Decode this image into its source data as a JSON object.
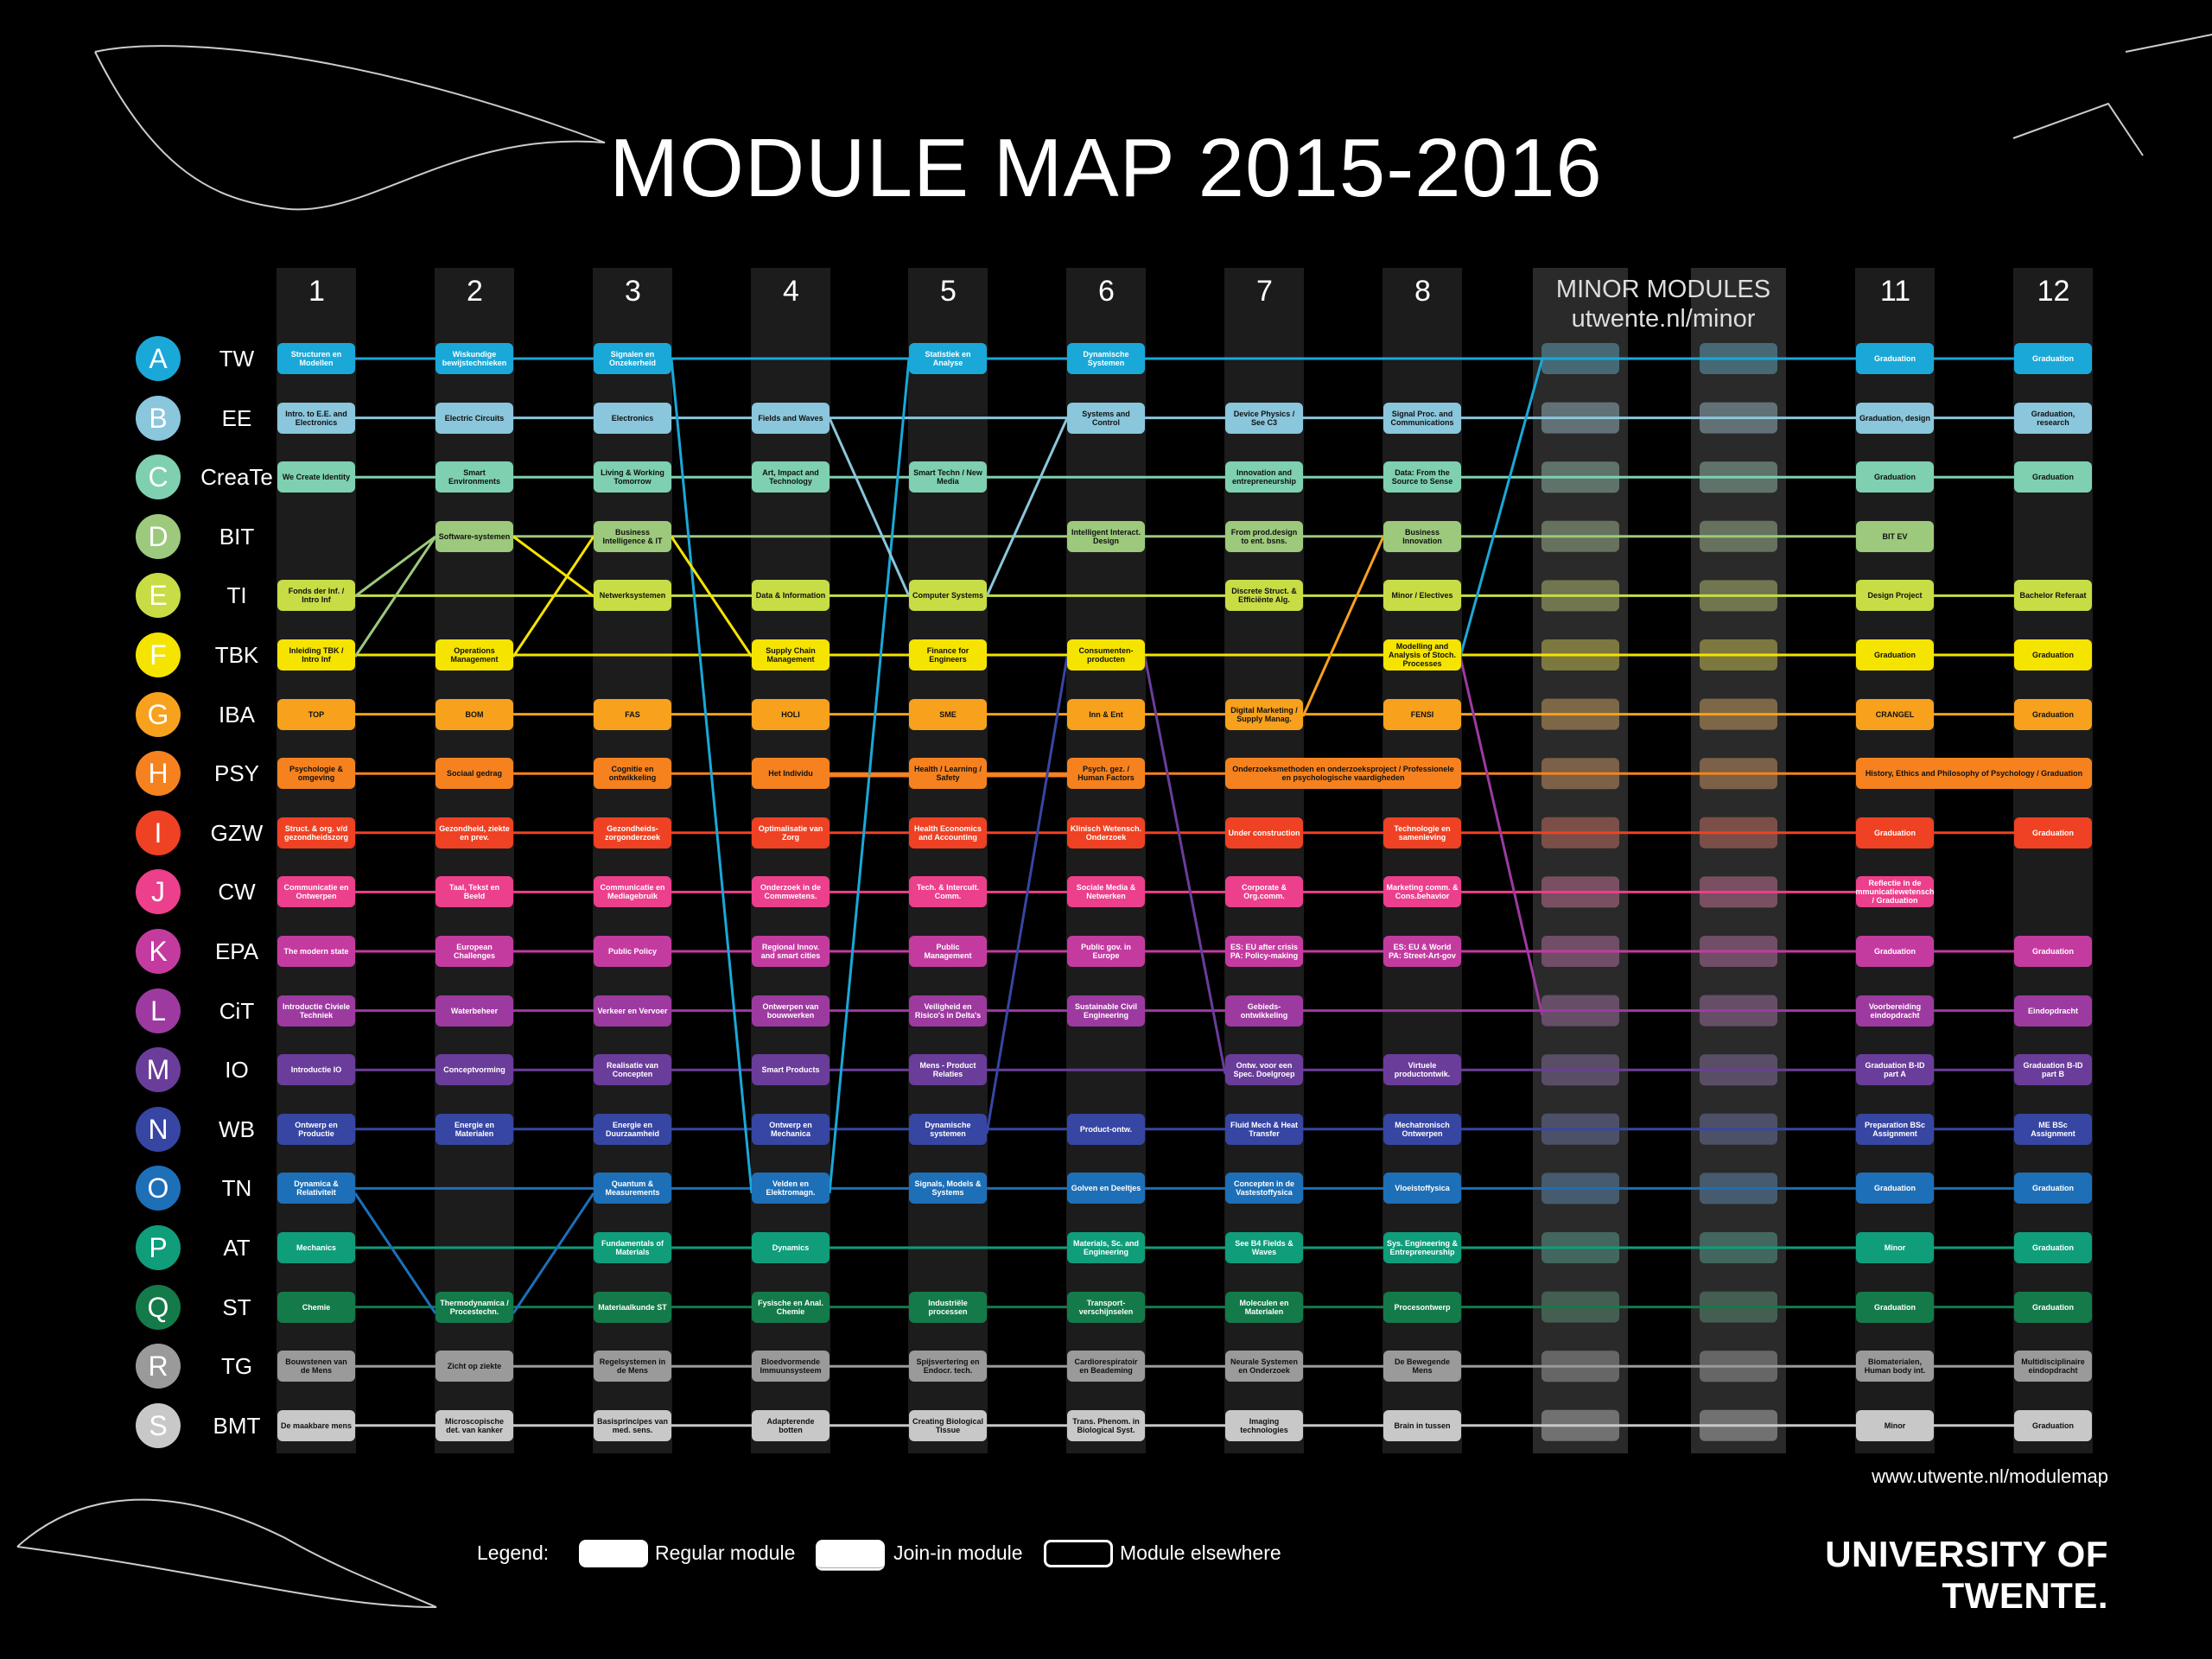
{
  "header": {
    "title": "MODULE MAP 2015-2016"
  },
  "columns": [
    "1",
    "2",
    "3",
    "4",
    "5",
    "6",
    "7",
    "8",
    "11",
    "12"
  ],
  "minor": {
    "title": "MINOR MODULES",
    "url": "utwente.nl/minor"
  },
  "rows": [
    {
      "letter": "A",
      "code": "TW",
      "color": "#1aa8d8",
      "modules": [
        "Structuren en Modellen",
        "Wiskundige bewijstechnieken",
        "Signalen en Onzekerheid",
        null,
        "Statistiek en Analyse",
        "Dynamische Systemen",
        null,
        null,
        "Graduation",
        "Graduation"
      ]
    },
    {
      "letter": "B",
      "code": "EE",
      "color": "#8ac6dc",
      "modules": [
        "Intro. to E.E. and Electronics",
        "Electric Circuits",
        "Electronics",
        "Fields and Waves",
        null,
        "Systems and Control",
        "Device Physics / See C3",
        "Signal Proc. and Communications",
        "Graduation, design",
        "Graduation, research"
      ]
    },
    {
      "letter": "C",
      "code": "CreaTe",
      "color": "#7ed0b0",
      "modules": [
        "We Create Identity",
        "Smart Environments",
        "Living & Working Tomorrow",
        "Art, Impact and Technology",
        "Smart Techn / New Media",
        null,
        "Innovation and entrepreneurship",
        "Data: From the Source to Sense",
        "Graduation",
        "Graduation"
      ]
    },
    {
      "letter": "D",
      "code": "BIT",
      "color": "#9cc97c",
      "modules": [
        null,
        "Software-systemen",
        "Business Intelligence & IT",
        null,
        null,
        "Intelligent Interact. Design",
        "From prod.design to ent. bsns.",
        "Business Innovation",
        "BIT EV",
        null
      ]
    },
    {
      "letter": "E",
      "code": "TI",
      "color": "#c8dc46",
      "modules": [
        "Fonds der Inf. / Intro Inf",
        null,
        "Netwerksystemen",
        "Data & Information",
        "Computer Systems",
        null,
        "Discrete Struct. & Efficiënte Alg.",
        "Minor / Electives",
        "Design Project",
        "Bachelor Referaat"
      ]
    },
    {
      "letter": "F",
      "code": "TBK",
      "color": "#f5e400",
      "modules": [
        "Inleiding TBK / Intro Inf",
        "Operations Management",
        null,
        "Supply Chain Management",
        "Finance for Engineers",
        "Consumenten-producten",
        null,
        "Modelling and Analysis of Stoch. Processes",
        "Graduation",
        "Graduation"
      ]
    },
    {
      "letter": "G",
      "code": "IBA",
      "color": "#f7a11d",
      "modules": [
        "TOP",
        "BOM",
        "FAS",
        "HOLI",
        "SME",
        "Inn & Ent",
        "Digital Marketing / Supply Manag.",
        "FENSI",
        "CRANGEL",
        "Graduation"
      ]
    },
    {
      "letter": "H",
      "code": "PSY",
      "color": "#f5821f",
      "modules": [
        "Psychologie & omgeving",
        "Sociaal gedrag",
        "Cognitie en ontwikkeling",
        "Het Individu",
        "Health / Learning / Safety",
        "Psych. gez. / Human Factors",
        "Onderzoeksmethoden en onderzoeksproject / Professionele en psychologische vaardigheden",
        null,
        "History, Ethics and Philosophy of Psychology / Graduation",
        null
      ]
    },
    {
      "letter": "I",
      "code": "GZW",
      "color": "#ef4123",
      "modules": [
        "Struct. & org. v/d gezondheidszorg",
        "Gezondheid, ziekte en prev.",
        "Gezondheids-zorgonderzoek",
        "Optimalisatie van Zorg",
        "Health Economics and Accounting",
        "Klinisch Wetensch. Onderzoek",
        "Under construction",
        "Technologie en samenleving",
        "Graduation",
        "Graduation"
      ]
    },
    {
      "letter": "J",
      "code": "CW",
      "color": "#ec3f8c",
      "modules": [
        "Communicatie en Ontwerpen",
        "Taal, Tekst en Beeld",
        "Communicatie en Mediagebruik",
        "Onderzoek in de Commwetens.",
        "Tech. & Intercult. Comm.",
        "Sociale Media & Netwerken",
        "Corporate & Org.comm.",
        "Marketing comm. & Cons.behavior",
        "Reflectie in de communicatiewetenschap / Graduation",
        null
      ]
    },
    {
      "letter": "K",
      "code": "EPA",
      "color": "#c43ba0",
      "modules": [
        "The modern state",
        "European Challenges",
        "Public Policy",
        "Regional Innov. and smart cities",
        "Public Management",
        "Public gov. in Europe",
        "ES: EU after crisis PA: Policy-making",
        "ES: EU & World PA: Street-Art-gov",
        "Graduation",
        "Graduation"
      ]
    },
    {
      "letter": "L",
      "code": "CiT",
      "color": "#9d3aa0",
      "modules": [
        "Introductie Civiele Techniek",
        "Waterbeheer",
        "Verkeer en Vervoer",
        "Ontwerpen van bouwwerken",
        "Veiligheid en Risico's in Delta's",
        "Sustainable Civil Engineering",
        "Gebieds-ontwikkeling",
        null,
        "Voorbereiding eindopdracht",
        "Eindopdracht"
      ]
    },
    {
      "letter": "M",
      "code": "IO",
      "color": "#6a3d9a",
      "modules": [
        "Introductie IO",
        "Conceptvorming",
        "Realisatie van Concepten",
        "Smart Products",
        "Mens - Product Relaties",
        null,
        "Ontw. voor een Spec. Doelgroep",
        "Virtuele productontwik.",
        "Graduation B-ID part A",
        "Graduation B-ID part B"
      ]
    },
    {
      "letter": "N",
      "code": "WB",
      "color": "#3746a3",
      "modules": [
        "Ontwerp en Productie",
        "Energie en Materialen",
        "Energie en Duurzaamheid",
        "Ontwerp en Mechanica",
        "Dynamische systemen",
        "Product-ontw.",
        "Fluid Mech & Heat Transfer",
        "Mechatronisch Ontwerpen",
        "Preparation BSc Assignment",
        "ME BSc Assignment"
      ]
    },
    {
      "letter": "O",
      "code": "TN",
      "color": "#1d6fb8",
      "modules": [
        "Dynamica & Relativiteit",
        null,
        "Quantum & Measurements",
        "Velden en Elektromagn.",
        "Signals, Models & Systems",
        "Golven en Deeltjes",
        "Concepten in de Vastestoffysica",
        "Vloeistoffysica",
        "Graduation",
        "Graduation"
      ]
    },
    {
      "letter": "P",
      "code": "AT",
      "color": "#0f9d7a",
      "modules": [
        "Mechanics",
        null,
        "Fundamentals of Materials",
        "Dynamics",
        null,
        "Materials, Sc. and Engineering",
        "See B4 Fields & Waves",
        "Sys. Engineering & Entrepreneurship",
        "Minor",
        "Graduation"
      ]
    },
    {
      "letter": "Q",
      "code": "ST",
      "color": "#147a4a",
      "modules": [
        "Chemie",
        "Thermodynamica / Procestechn.",
        "Materiaalkunde ST",
        "Fysische en Anal. Chemie",
        "Industriële processen",
        "Transport-verschijnselen",
        "Moleculen en Materialen",
        "Procesontwerp",
        "Graduation",
        "Graduation"
      ]
    },
    {
      "letter": "R",
      "code": "TG",
      "color": "#9a9a9a",
      "modules": [
        "Bouwstenen van de Mens",
        "Zicht op ziekte",
        "Regelsystemen in de Mens",
        "Bloedvormende Immuunsysteem",
        "Spijsvertering en Endocr. tech.",
        "Cardiorespiratoir en Beademing",
        "Neurale Systemen en Onderzoek",
        "De Bewegende Mens",
        "Biomaterialen, Human body int.",
        "Multidisciplinaire eindopdracht"
      ]
    },
    {
      "letter": "S",
      "code": "BMT",
      "color": "#c8c8c8",
      "modules": [
        "De maakbare mens",
        "Microscopische det. van kanker",
        "Basisprincipes van med. sens.",
        "Adapterende botten",
        "Creating Biological Tissue",
        "Trans. Phenom. in Biological Syst.",
        "Imaging technologies",
        "Brain in tussen",
        "Minor",
        "Graduation"
      ]
    }
  ],
  "footer": {
    "url": "www.utwente.nl/modulemap",
    "university": "UNIVERSITY OF TWENTE."
  },
  "legend": {
    "title": "Legend:",
    "items": [
      "Regular module",
      "Join-in module",
      "Module elsewhere"
    ]
  }
}
